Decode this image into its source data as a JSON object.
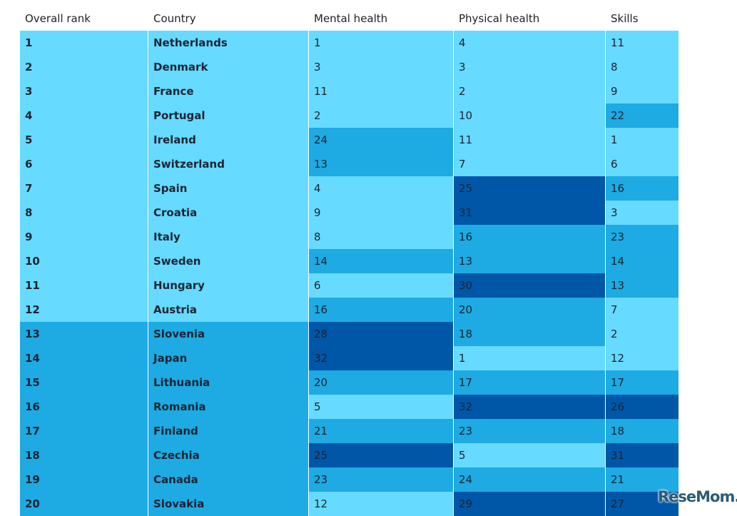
{
  "chart_data": {
    "type": "table",
    "columns": [
      "Overall rank",
      "Country",
      "Mental health",
      "Physical health",
      "Skills"
    ],
    "rows": [
      [
        1,
        "Netherlands",
        1,
        4,
        11
      ],
      [
        2,
        "Denmark",
        3,
        3,
        8
      ],
      [
        3,
        "France",
        11,
        2,
        9
      ],
      [
        4,
        "Portugal",
        2,
        10,
        22
      ],
      [
        5,
        "Ireland",
        24,
        11,
        1
      ],
      [
        6,
        "Switzerland",
        13,
        7,
        6
      ],
      [
        7,
        "Spain",
        4,
        25,
        16
      ],
      [
        8,
        "Croatia",
        9,
        31,
        3
      ],
      [
        9,
        "Italy",
        8,
        16,
        23
      ],
      [
        10,
        "Sweden",
        14,
        13,
        14
      ],
      [
        11,
        "Hungary",
        6,
        30,
        13
      ],
      [
        12,
        "Austria",
        16,
        20,
        7
      ],
      [
        13,
        "Slovenia",
        28,
        18,
        2
      ],
      [
        14,
        "Japan",
        32,
        1,
        12
      ],
      [
        15,
        "Lithuania",
        20,
        17,
        17
      ],
      [
        16,
        "Romania",
        5,
        32,
        26
      ],
      [
        17,
        "Finland",
        21,
        23,
        18
      ],
      [
        18,
        "Czechia",
        25,
        5,
        31
      ],
      [
        19,
        "Canada",
        23,
        24,
        21
      ],
      [
        20,
        "Slovakia",
        12,
        29,
        27
      ]
    ],
    "color_scale": {
      "1-12": "#66daff",
      "13-24": "#1eaae2",
      "25-32": "#0057a8"
    }
  },
  "watermark": "ReseMom"
}
